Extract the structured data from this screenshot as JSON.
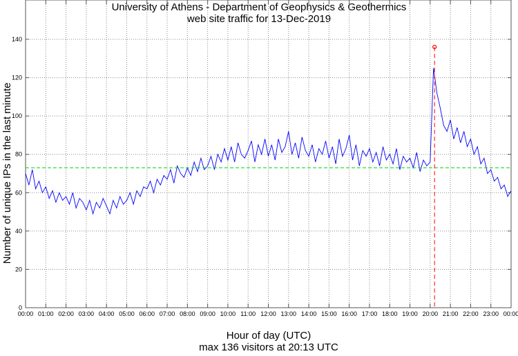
{
  "chart_data": {
    "type": "line",
    "title": "University of Athens - Department of Geophysics & Geothermics",
    "subtitle": "web site traffic for 13-Dec-2019",
    "xlabel": "Hour of day (UTC)",
    "footer": "max 136 visitors at 20:13 UTC",
    "ylabel": "Number of unique IPs in the last minute",
    "xlim_hours": [
      0,
      24
    ],
    "ylim": [
      0,
      140
    ],
    "yticks": [
      0,
      20,
      40,
      60,
      80,
      100,
      120,
      140
    ],
    "xtick_labels": [
      "00:00",
      "01:00",
      "02:00",
      "03:00",
      "04:00",
      "05:00",
      "06:00",
      "07:00",
      "08:00",
      "09:00",
      "10:00",
      "11:00",
      "12:00",
      "13:00",
      "14:00",
      "15:00",
      "16:00",
      "17:00",
      "18:00",
      "19:00",
      "20:00",
      "21:00",
      "22:00",
      "23:00",
      "00:00"
    ],
    "grid": true,
    "sample_interval_minutes": 10,
    "series": [
      {
        "name": "visitors",
        "color": "#0000ff",
        "values": [
          70,
          64,
          72,
          62,
          66,
          60,
          63,
          57,
          61,
          55,
          60,
          56,
          58,
          54,
          60,
          52,
          57,
          55,
          51,
          56,
          49,
          55,
          52,
          57,
          53,
          49,
          56,
          52,
          58,
          54,
          56,
          60,
          54,
          61,
          58,
          63,
          62,
          66,
          60,
          67,
          64,
          69,
          67,
          72,
          65,
          74,
          70,
          68,
          73,
          69,
          76,
          71,
          78,
          72,
          74,
          79,
          72,
          80,
          76,
          83,
          77,
          84,
          76,
          86,
          80,
          78,
          82,
          87,
          76,
          85,
          80,
          88,
          79,
          85,
          77,
          88,
          81,
          84,
          92,
          80,
          86,
          78,
          89,
          82,
          79,
          85,
          76,
          83,
          80,
          87,
          78,
          84,
          75,
          88,
          79,
          83,
          90,
          77,
          85,
          74,
          82,
          79,
          83,
          76,
          81,
          74,
          84,
          77,
          80,
          75,
          83,
          72,
          79,
          76,
          78,
          73,
          81,
          71,
          77,
          74,
          76,
          125,
          112,
          104,
          95,
          92,
          98,
          88,
          94,
          86,
          92,
          84,
          88,
          80,
          84,
          75,
          78,
          70,
          72,
          66,
          68,
          62,
          64,
          58,
          61
        ]
      }
    ],
    "mean_line": {
      "value": 73,
      "color": "#00cc00"
    },
    "max_point": {
      "hour": 20.2167,
      "value": 136,
      "color": "#ff0000"
    }
  }
}
